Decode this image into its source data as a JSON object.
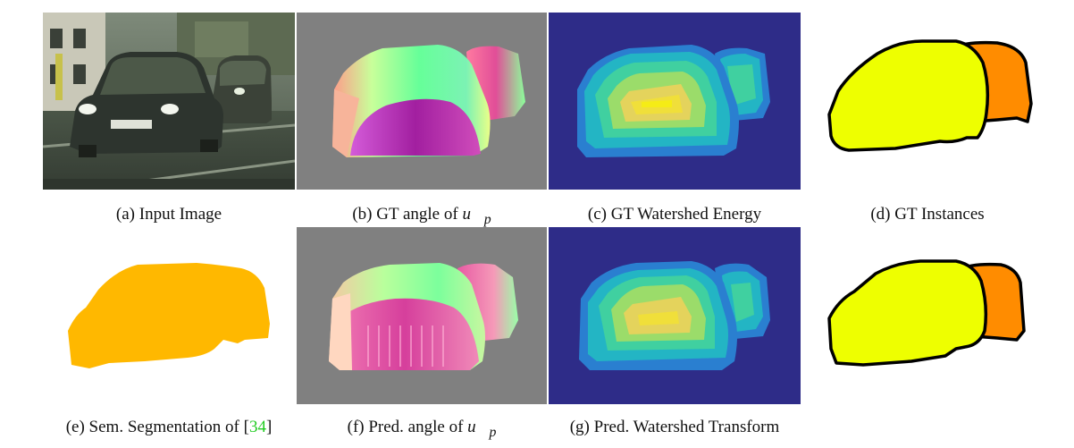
{
  "figure": {
    "panels": [
      {
        "id": "a",
        "caption": "(a) Input Image",
        "type": "photo"
      },
      {
        "id": "b",
        "caption_prefix": "(b) GT angle of ",
        "math": "u⃗",
        "math_sub": "p",
        "type": "angle-map"
      },
      {
        "id": "c",
        "caption": "(c) GT Watershed Energy",
        "type": "energy-map"
      },
      {
        "id": "d",
        "caption": "(d) GT Instances",
        "type": "instance-map"
      },
      {
        "id": "e",
        "caption_prefix": "(e) Sem. Segmentation of ",
        "ref_open": "[",
        "ref_num": "34",
        "ref_close": "]",
        "type": "semantic-mask"
      },
      {
        "id": "f",
        "caption_prefix": "(f) Pred. angle of ",
        "math": "u⃗",
        "math_sub": "p",
        "type": "angle-map"
      },
      {
        "id": "g",
        "caption": "(g) Pred. Watershed Transform",
        "type": "energy-map"
      },
      {
        "id": "h",
        "caption": "",
        "type": "instance-map"
      }
    ],
    "colors": {
      "angle_gray": "#808080",
      "energy_bg": "#2e2c88",
      "instance_yellow": "#eeff00",
      "instance_orange": "#ff8c00",
      "semantic_orange": "#ffb800",
      "reference_green": "#22cc22"
    }
  }
}
